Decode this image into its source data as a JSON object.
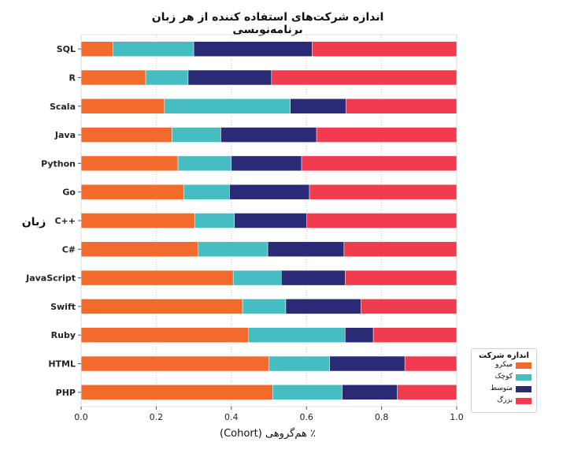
{
  "chart_data": {
    "type": "bar",
    "orientation": "horizontal",
    "stacked": true,
    "title": "اندازه شرکت‌های استفاده کننده از هر زبان برنامه‌نویسی",
    "xlabel": "٪ هم‌گروهی (Cohort)",
    "ylabel": "زبان",
    "xlim": [
      0,
      1.0
    ],
    "xticks": [
      "0.0",
      "0.2",
      "0.4",
      "0.6",
      "0.8",
      "1.0"
    ],
    "grid": "vertical dotted",
    "categories": [
      "SQL",
      "R",
      "Scala",
      "Java",
      "Python",
      "Go",
      "C++",
      "C#",
      "JavaScript",
      "Swift",
      "Ruby",
      "HTML",
      "PHP"
    ],
    "series": [
      {
        "name": "میکرو",
        "color": "#f26b2c",
        "values": [
          0.085,
          0.172,
          0.222,
          0.242,
          0.258,
          0.273,
          0.303,
          0.312,
          0.405,
          0.43,
          0.445,
          0.5,
          0.51
        ]
      },
      {
        "name": "کوچک",
        "color": "#46bdc0",
        "values": [
          0.215,
          0.113,
          0.335,
          0.13,
          0.142,
          0.122,
          0.105,
          0.185,
          0.128,
          0.115,
          0.258,
          0.162,
          0.185
        ]
      },
      {
        "name": "متوسط",
        "color": "#2a2a76",
        "values": [
          0.315,
          0.222,
          0.148,
          0.255,
          0.187,
          0.213,
          0.193,
          0.203,
          0.17,
          0.2,
          0.075,
          0.2,
          0.147
        ]
      },
      {
        "name": "بزرگ",
        "color": "#f03c4e",
        "values": [
          0.385,
          0.493,
          0.295,
          0.373,
          0.413,
          0.392,
          0.399,
          0.3,
          0.297,
          0.255,
          0.222,
          0.138,
          0.158
        ]
      }
    ],
    "legend": {
      "title": "اندازه شرکت",
      "position": "right-bottom"
    }
  }
}
